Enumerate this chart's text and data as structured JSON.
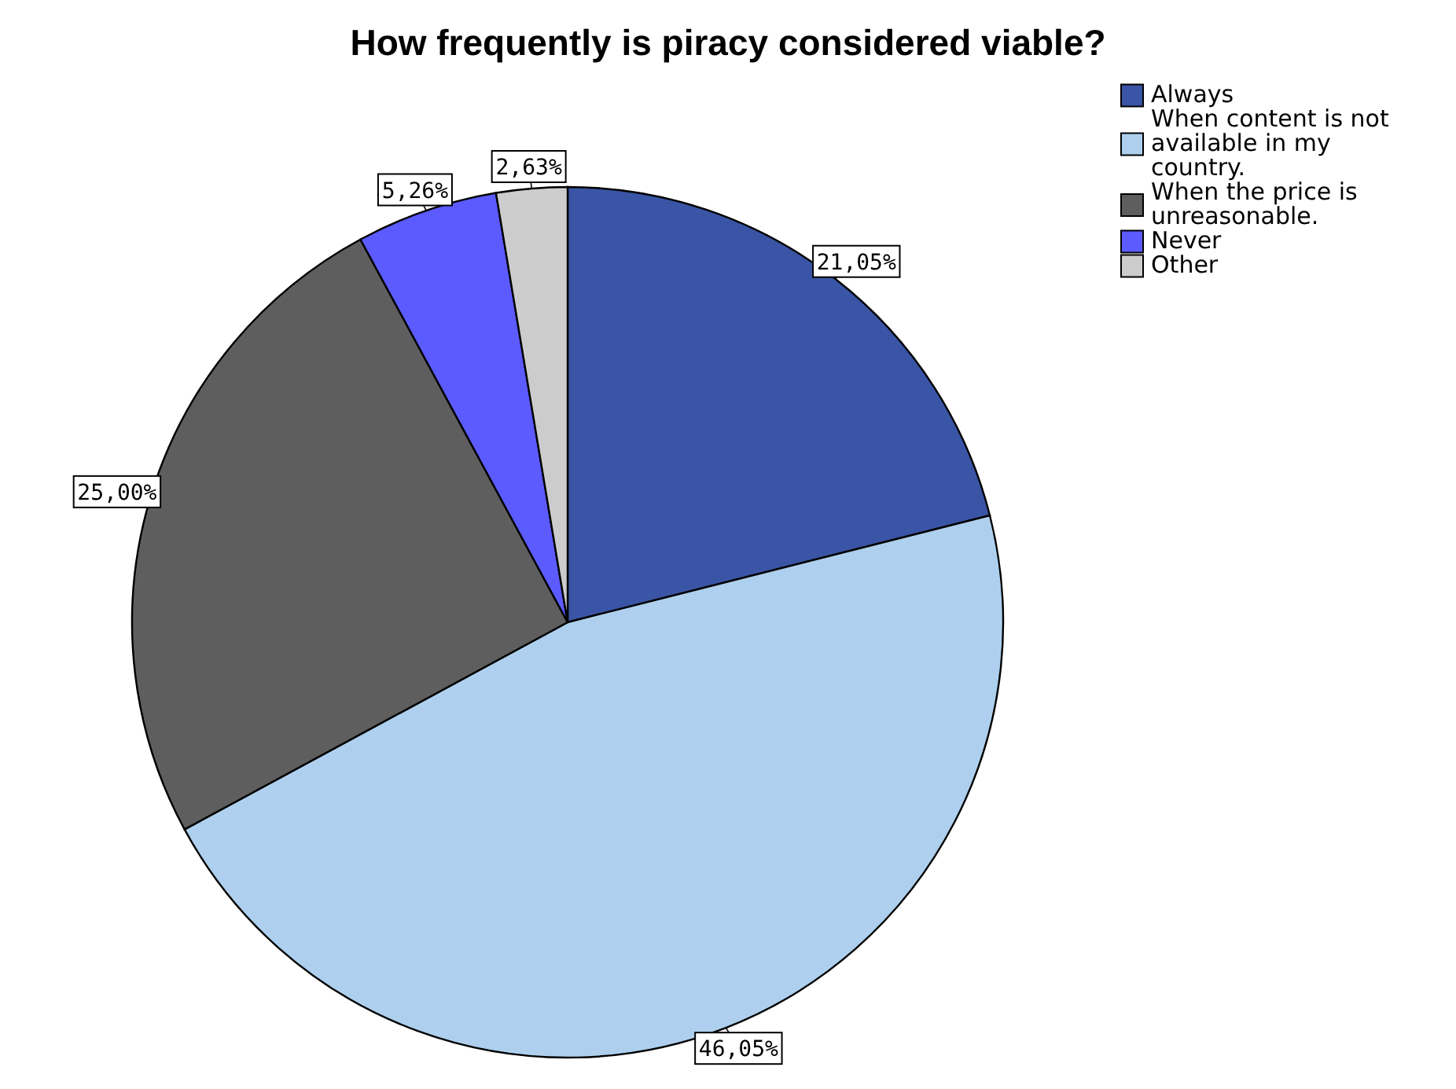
{
  "chart_data": {
    "type": "pie",
    "title": "How frequently is piracy considered viable?",
    "categories": [
      "Always",
      "When content is not available in my country.",
      "When the price is unreasonable.",
      "Never",
      "Other"
    ],
    "values": [
      21.05,
      46.05,
      25.0,
      5.26,
      2.63
    ],
    "value_labels": [
      "21,05%",
      "46,05%",
      "25,00%",
      "5,26%",
      "2,63%"
    ],
    "colors": [
      "#3a55a5",
      "#aed0ee",
      "#5e5e5e",
      "#5b5bff",
      "#cccccc"
    ],
    "legend": "top right"
  }
}
